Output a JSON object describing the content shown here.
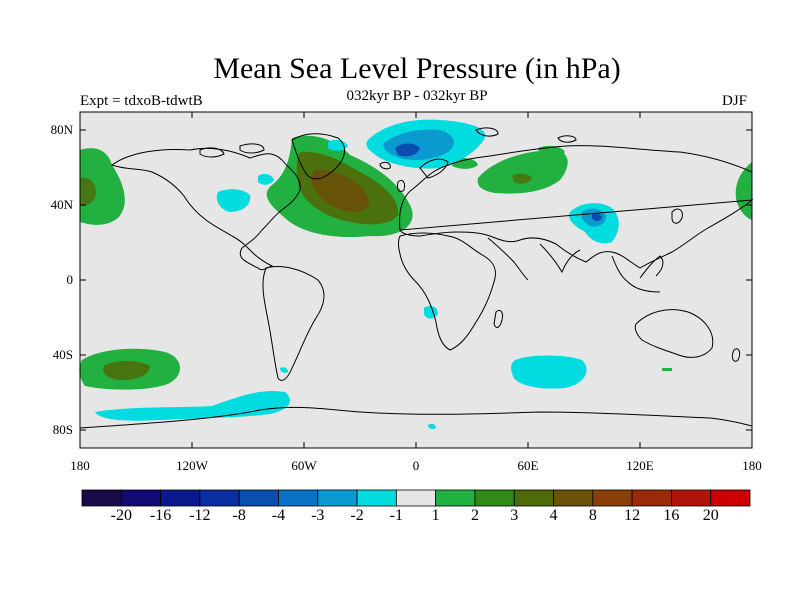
{
  "header": {
    "title": "Mean Sea Level Pressure (in hPa)",
    "subtitle": "032kyr BP - 032kyr BP",
    "left_label": "Expt = tdxoB-tdwtB",
    "right_label": "DJF"
  },
  "map": {
    "lat_labels": [
      "80N",
      "40N",
      "0",
      "40S",
      "80S"
    ],
    "lon_labels": [
      "180",
      "120W",
      "60W",
      "0",
      "60E",
      "120E",
      "180"
    ],
    "land_fill": "#e6e6e6"
  },
  "colorbar": {
    "colors": [
      "#1a0a4a",
      "#110a73",
      "#0a1a8c",
      "#0a2fa0",
      "#0a4fb0",
      "#0a72c4",
      "#0a9ad0",
      "#00dce0",
      "#e6e6e6",
      "#22b040",
      "#2f8a1a",
      "#4f6a08",
      "#6a5008",
      "#8a3e08",
      "#9a2a0a",
      "#b0140a",
      "#cc0000"
    ],
    "labels": [
      "-20",
      "-16",
      "-12",
      "-8",
      "-4",
      "-3",
      "-2",
      "-1",
      "1",
      "2",
      "3",
      "4",
      "8",
      "12",
      "16",
      "20"
    ]
  }
}
